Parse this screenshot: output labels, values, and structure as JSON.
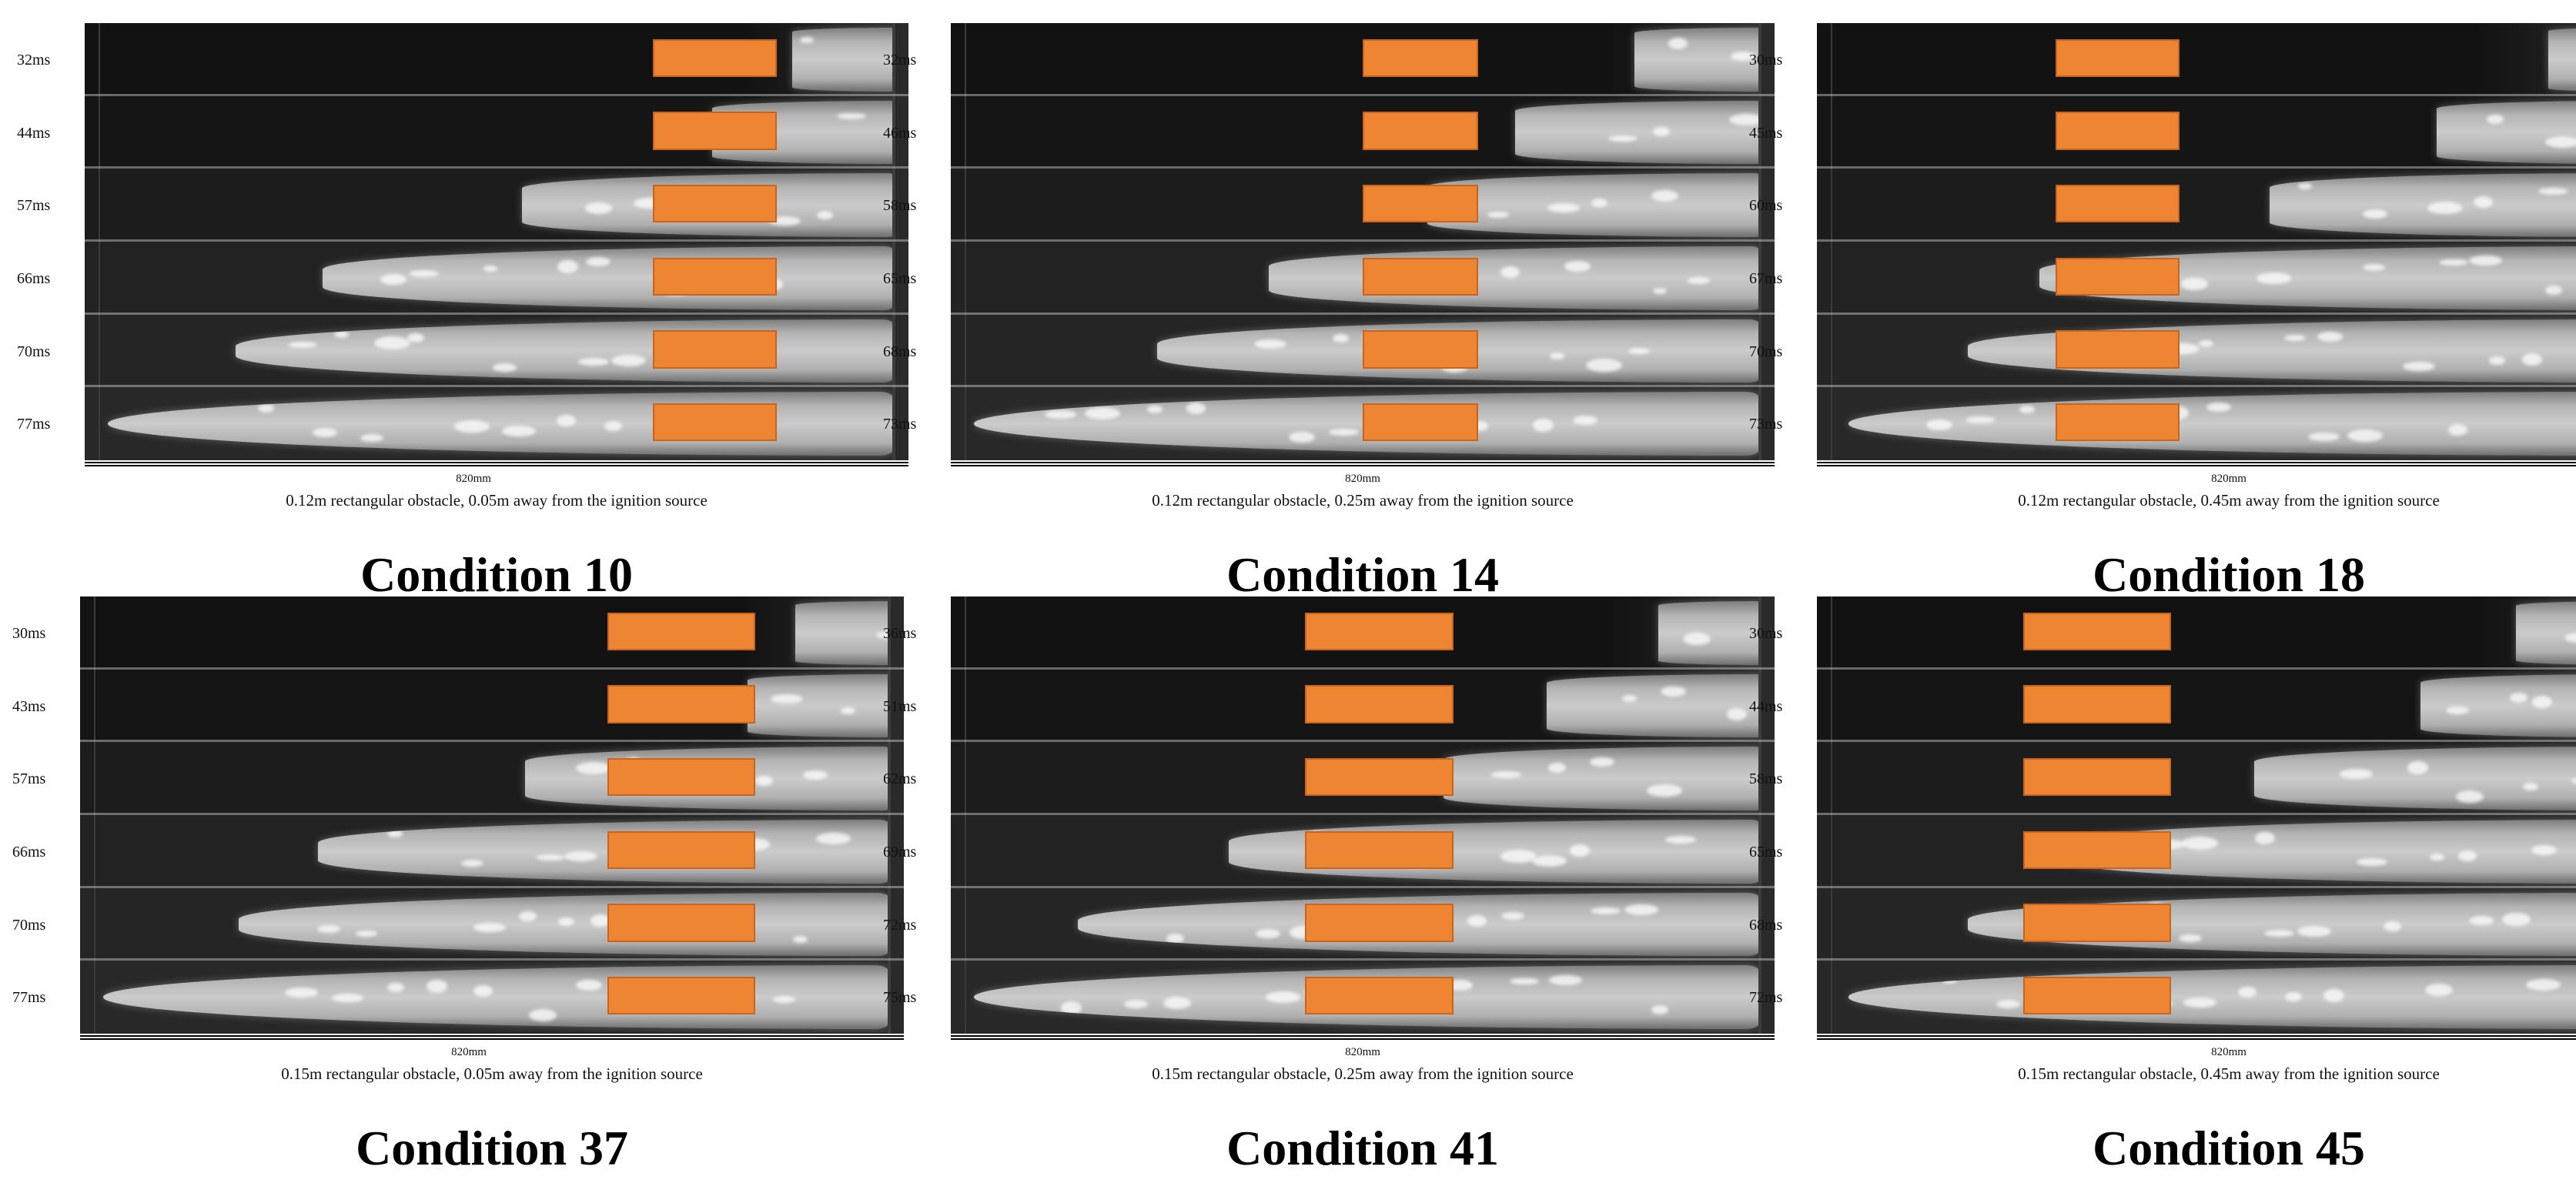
{
  "panels": [
    {
      "title": "Condition 10",
      "caption": "0.12m rectangular obstacle, 0.05m away from the ignition source",
      "distance_label": "820mm",
      "times": [
        "32ms",
        "44ms",
        "57ms",
        "66ms",
        "70ms",
        "77ms"
      ],
      "flame_reach": [
        0.13,
        0.23,
        0.47,
        0.72,
        0.83,
        0.99
      ],
      "obstacle": {
        "position": 0.84,
        "width": 0.15
      }
    },
    {
      "title": "Condition 14",
      "caption": "0.12m rectangular obstacle, 0.25m away from the ignition source",
      "distance_label": "820mm",
      "times": [
        "32ms",
        "46ms",
        "58ms",
        "65ms",
        "68ms",
        "73ms"
      ],
      "flame_reach": [
        0.16,
        0.31,
        0.42,
        0.62,
        0.76,
        0.99
      ],
      "obstacle": {
        "position": 0.64,
        "width": 0.14
      }
    },
    {
      "title": "Condition 18",
      "caption": "0.12m rectangular obstacle, 0.45m away from the ignition source",
      "distance_label": "820mm",
      "times": [
        "30ms",
        "45ms",
        "60ms",
        "67ms",
        "70ms",
        "73ms"
      ],
      "flame_reach": [
        0.1,
        0.24,
        0.45,
        0.74,
        0.83,
        0.98
      ],
      "obstacle": {
        "position": 0.44,
        "width": 0.15
      }
    },
    {
      "title": "Condition 37",
      "caption": "0.15m rectangular obstacle, 0.05m away from the ignition source",
      "distance_label": "820mm",
      "times": [
        "30ms",
        "43ms",
        "57ms",
        "66ms",
        "70ms",
        "77ms"
      ],
      "flame_reach": [
        0.12,
        0.18,
        0.46,
        0.72,
        0.82,
        0.99
      ],
      "obstacle": {
        "position": 0.82,
        "width": 0.18
      }
    },
    {
      "title": "Condition 41",
      "caption": "0.15m rectangular obstacle, 0.25m away from the ignition source",
      "distance_label": "820mm",
      "times": [
        "36ms",
        "51ms",
        "62ms",
        "69ms",
        "72ms",
        "75ms"
      ],
      "flame_reach": [
        0.13,
        0.27,
        0.4,
        0.67,
        0.86,
        0.99
      ],
      "obstacle": {
        "position": 0.61,
        "width": 0.18
      }
    },
    {
      "title": "Condition 45",
      "caption": "0.15m rectangular obstacle, 0.45m away from the ignition source",
      "distance_label": "820mm",
      "times": [
        "30ms",
        "44ms",
        "58ms",
        "65ms",
        "68ms",
        "72ms"
      ],
      "flame_reach": [
        0.14,
        0.26,
        0.47,
        0.71,
        0.83,
        0.98
      ],
      "obstacle": {
        "position": 0.43,
        "width": 0.18
      }
    }
  ],
  "colors": {
    "obstacle": "#ee8533",
    "flame": "#c8c8c8",
    "background": "#161616"
  }
}
